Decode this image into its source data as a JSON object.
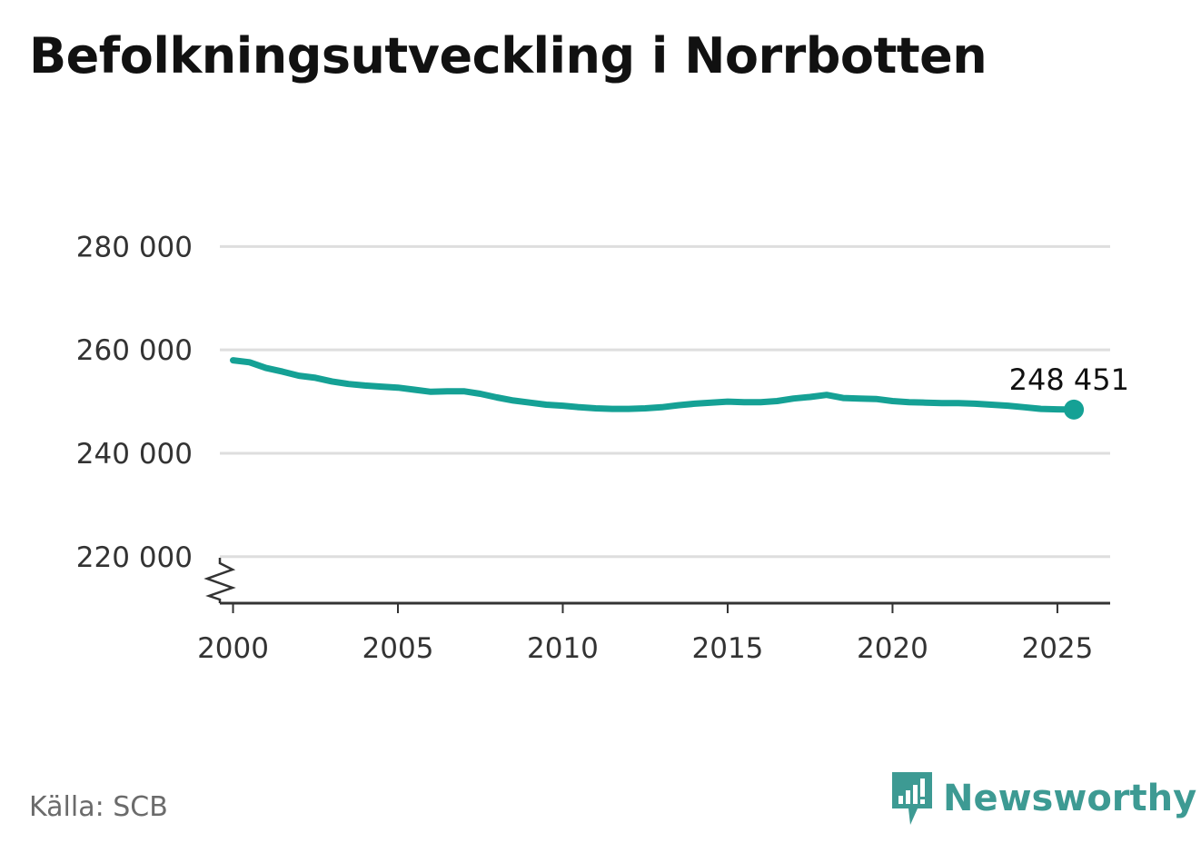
{
  "title": "Befolkningsutveckling i Norrbotten",
  "source": "Källa: SCB",
  "brand": {
    "name": "Newsworthy",
    "color": "#3d9a93",
    "icon": "bar-chart-speech-bubble-icon"
  },
  "colors": {
    "line": "#15a195",
    "grid": "#dedede",
    "axis": "#333333",
    "text": "#333333"
  },
  "chart_data": {
    "type": "line",
    "title": "Befolkningsutveckling i Norrbotten",
    "xlabel": "",
    "ylabel": "",
    "xlim": [
      1999.6,
      2026.6
    ],
    "ylim": [
      211000,
      282000
    ],
    "y_ticks": [
      220000,
      240000,
      260000,
      280000
    ],
    "y_tick_labels": [
      "220 000",
      "240 000",
      "260 000",
      "280 000"
    ],
    "x_ticks": [
      2000,
      2005,
      2010,
      2015,
      2020,
      2025
    ],
    "x_tick_labels": [
      "2000",
      "2005",
      "2010",
      "2015",
      "2020",
      "2025"
    ],
    "grid": true,
    "axis_break": true,
    "end_label": "248 451",
    "series": [
      {
        "x": [
          2000.0,
          2000.5,
          2001.0,
          2001.5,
          2002.0,
          2002.5,
          2003.0,
          2003.5,
          2004.0,
          2004.5,
          2005.0,
          2005.5,
          2006.0,
          2006.5,
          2007.0,
          2007.5,
          2008.0,
          2008.5,
          2009.0,
          2009.5,
          2010.0,
          2010.5,
          2011.0,
          2011.5,
          2012.0,
          2012.5,
          2013.0,
          2013.5,
          2014.0,
          2014.5,
          2015.0,
          2015.5,
          2016.0,
          2016.5,
          2017.0,
          2017.5,
          2018.0,
          2018.5,
          2019.0,
          2019.5,
          2020.0,
          2020.5,
          2021.0,
          2021.5,
          2022.0,
          2022.5,
          2023.0,
          2023.5,
          2024.0,
          2024.5,
          2025.0,
          2025.5
        ],
        "values": [
          258000,
          257600,
          256500,
          255800,
          255000,
          254600,
          253900,
          253400,
          253100,
          252900,
          252700,
          252300,
          251900,
          252000,
          252000,
          251500,
          250800,
          250200,
          249800,
          249400,
          249200,
          248900,
          248700,
          248600,
          248600,
          248700,
          248900,
          249300,
          249600,
          249800,
          250000,
          249900,
          249900,
          250100,
          250600,
          250900,
          251300,
          250700,
          250600,
          250500,
          250100,
          249900,
          249800,
          249700,
          249700,
          249600,
          249400,
          249200,
          248900,
          248600,
          248500,
          248451
        ]
      }
    ]
  }
}
